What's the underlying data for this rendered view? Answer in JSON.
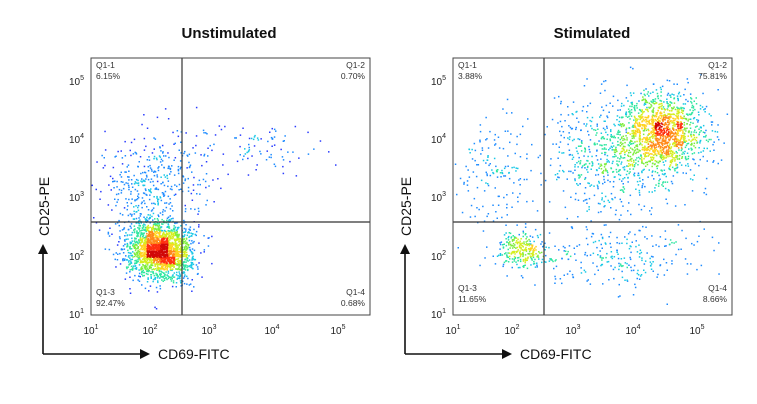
{
  "chart_data": [
    {
      "type": "scatter",
      "subtype": "flow-cytometry-density-dot-plot",
      "title": "Unstimulated",
      "xlabel": "CD69-FITC",
      "ylabel": "CD25-PE",
      "x_scale": "log",
      "y_scale": "log",
      "xlim": [
        10,
        100000
      ],
      "ylim": [
        10,
        100000
      ],
      "x_ticks": [
        {
          "base": "10",
          "exp": "1"
        },
        {
          "base": "10",
          "exp": "2"
        },
        {
          "base": "10",
          "exp": "3"
        },
        {
          "base": "10",
          "exp": "4"
        },
        {
          "base": "10",
          "exp": "5"
        }
      ],
      "y_ticks": [
        {
          "base": "10",
          "exp": "1"
        },
        {
          "base": "10",
          "exp": "2"
        },
        {
          "base": "10",
          "exp": "3"
        },
        {
          "base": "10",
          "exp": "4"
        },
        {
          "base": "10",
          "exp": "5"
        }
      ],
      "gate": {
        "x": 300,
        "y": 400
      },
      "quadrants": [
        {
          "name": "Q1-1",
          "value": "6.15%",
          "position": "top-left"
        },
        {
          "name": "Q1-2",
          "value": "0.70%",
          "position": "top-right"
        },
        {
          "name": "Q1-3",
          "value": "92.47%",
          "position": "bottom-left"
        },
        {
          "name": "Q1-4",
          "value": "0.68%",
          "position": "bottom-right"
        }
      ],
      "populations": [
        {
          "x_log": 2.0,
          "y_log": 2.0,
          "sx": 0.22,
          "sy": 0.22,
          "weight": 0.78
        },
        {
          "x_log": 1.75,
          "y_log": 2.8,
          "sx": 0.3,
          "sy": 0.45,
          "weight": 0.14
        },
        {
          "x_log": 2.3,
          "y_log": 3.3,
          "sx": 0.3,
          "sy": 0.35,
          "weight": 0.05
        },
        {
          "x_log": 3.4,
          "y_log": 3.6,
          "sx": 0.4,
          "sy": 0.2,
          "weight": 0.03
        }
      ]
    },
    {
      "type": "scatter",
      "subtype": "flow-cytometry-density-dot-plot",
      "title": "Stimulated",
      "xlabel": "CD69-FITC",
      "ylabel": "CD25-PE",
      "x_scale": "log",
      "y_scale": "log",
      "xlim": [
        10,
        100000
      ],
      "ylim": [
        10,
        100000
      ],
      "x_ticks": [
        {
          "base": "10",
          "exp": "1"
        },
        {
          "base": "10",
          "exp": "2"
        },
        {
          "base": "10",
          "exp": "3"
        },
        {
          "base": "10",
          "exp": "4"
        },
        {
          "base": "10",
          "exp": "5"
        }
      ],
      "y_ticks": [
        {
          "base": "10",
          "exp": "1"
        },
        {
          "base": "10",
          "exp": "2"
        },
        {
          "base": "10",
          "exp": "3"
        },
        {
          "base": "10",
          "exp": "4"
        },
        {
          "base": "10",
          "exp": "5"
        }
      ],
      "gate": {
        "x": 300,
        "y": 400
      },
      "quadrants": [
        {
          "name": "Q1-1",
          "value": "3.88%",
          "position": "top-left"
        },
        {
          "name": "Q1-2",
          "value": "75.81%",
          "position": "top-right"
        },
        {
          "name": "Q1-3",
          "value": "11.65%",
          "position": "bottom-left"
        },
        {
          "name": "Q1-4",
          "value": "8.66%",
          "position": "bottom-right"
        }
      ],
      "populations": [
        {
          "x_log": 4.0,
          "y_log": 3.85,
          "sx": 0.3,
          "sy": 0.3,
          "weight": 0.5
        },
        {
          "x_log": 3.3,
          "y_log": 3.5,
          "sx": 0.5,
          "sy": 0.45,
          "weight": 0.24
        },
        {
          "x_log": 2.0,
          "y_log": 2.0,
          "sx": 0.18,
          "sy": 0.14,
          "weight": 0.1
        },
        {
          "x_log": 3.3,
          "y_log": 1.9,
          "sx": 0.6,
          "sy": 0.25,
          "weight": 0.1
        },
        {
          "x_log": 1.6,
          "y_log": 3.2,
          "sx": 0.3,
          "sy": 0.5,
          "weight": 0.06
        }
      ]
    }
  ]
}
